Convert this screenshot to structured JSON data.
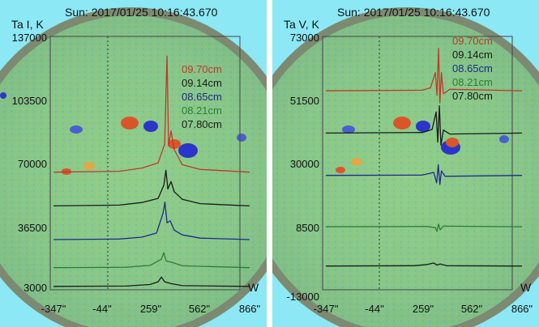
{
  "chart_data": [
    {
      "type": "line",
      "title": "Sun: 2017/01/25 10:16:43.670",
      "ylabel": "Ta I, K",
      "xlabel": "W",
      "ylim": [
        3000,
        137000
      ],
      "yticks": [
        "137000",
        "103500",
        "70000",
        "36500",
        "3000"
      ],
      "xticks": [
        "-347\"",
        "-44\"",
        "259\"",
        "562\"",
        "866\""
      ],
      "xlim": [
        -347,
        866
      ],
      "legend_position": "top-right",
      "series": [
        {
          "name": "09.70cm",
          "color": "#c0392b",
          "offset": 64500,
          "points": [
            [
              -347,
              0
            ],
            [
              60,
              500
            ],
            [
              200,
              2200
            ],
            [
              300,
              5000
            ],
            [
              340,
              15000
            ],
            [
              355,
              62000
            ],
            [
              365,
              14000
            ],
            [
              380,
              22000
            ],
            [
              400,
              12000
            ],
            [
              450,
              4000
            ],
            [
              560,
              1500
            ],
            [
              866,
              0
            ]
          ]
        },
        {
          "name": "09.14cm",
          "color": "#1a1a1a",
          "offset": 46500,
          "points": [
            [
              -347,
              0
            ],
            [
              60,
              400
            ],
            [
              200,
              1800
            ],
            [
              300,
              4000
            ],
            [
              335,
              11000
            ],
            [
              348,
              19000
            ],
            [
              360,
              9000
            ],
            [
              380,
              13000
            ],
            [
              400,
              7500
            ],
            [
              450,
              3500
            ],
            [
              560,
              1200
            ],
            [
              866,
              0
            ]
          ]
        },
        {
          "name": "08.65cm",
          "color": "#1f2a8a",
          "offset": 28500,
          "points": [
            [
              -347,
              0
            ],
            [
              60,
              300
            ],
            [
              200,
              1300
            ],
            [
              290,
              3500
            ],
            [
              330,
              14000
            ],
            [
              342,
              20000
            ],
            [
              355,
              9000
            ],
            [
              375,
              10000
            ],
            [
              400,
              5000
            ],
            [
              450,
              2500
            ],
            [
              560,
              800
            ],
            [
              866,
              0
            ]
          ]
        },
        {
          "name": "08.21cm",
          "color": "#2e7d32",
          "offset": 13500,
          "points": [
            [
              -347,
              0
            ],
            [
              100,
              200
            ],
            [
              250,
              1200
            ],
            [
              320,
              4500
            ],
            [
              335,
              8000
            ],
            [
              350,
              3500
            ],
            [
              380,
              3000
            ],
            [
              450,
              1000
            ],
            [
              866,
              0
            ]
          ]
        },
        {
          "name": "07.80cm",
          "color": "#1a1a1a",
          "offset": 3500,
          "points": [
            [
              -347,
              0
            ],
            [
              100,
              200
            ],
            [
              250,
              1000
            ],
            [
              300,
              2500
            ],
            [
              320,
              5000
            ],
            [
              340,
              2500
            ],
            [
              380,
              1500
            ],
            [
              450,
              400
            ],
            [
              866,
              0
            ]
          ]
        }
      ]
    },
    {
      "type": "line",
      "title": "Sun: 2017/01/25 10:16:43.670",
      "ylabel": "Ta V, K",
      "xlabel": "W",
      "ylim": [
        -13000,
        73000
      ],
      "yticks": [
        "73000",
        "51500",
        "30000",
        "8500",
        "-13000"
      ],
      "xticks": [
        "-347\"",
        "-44\"",
        "259\"",
        "562\"",
        "866\""
      ],
      "xlim": [
        -347,
        866
      ],
      "legend_position": "top-right",
      "series": [
        {
          "name": "09.70cm",
          "color": "#c0392b",
          "offset": 55000,
          "points": [
            [
              -347,
              0
            ],
            [
              250,
              200
            ],
            [
              300,
              1000
            ],
            [
              330,
              6000
            ],
            [
              340,
              -1500
            ],
            [
              350,
              14000
            ],
            [
              358,
              -4000
            ],
            [
              368,
              6000
            ],
            [
              380,
              -1000
            ],
            [
              420,
              500
            ],
            [
              866,
              0
            ]
          ]
        },
        {
          "name": "09.14cm",
          "color": "#1a1a1a",
          "offset": 41000,
          "points": [
            [
              -347,
              0
            ],
            [
              250,
              200
            ],
            [
              310,
              1200
            ],
            [
              335,
              7000
            ],
            [
              345,
              -3000
            ],
            [
              355,
              9000
            ],
            [
              365,
              -4000
            ],
            [
              380,
              1000
            ],
            [
              420,
              -300
            ],
            [
              866,
              0
            ]
          ]
        },
        {
          "name": "08.65cm",
          "color": "#1f2a8a",
          "offset": 27000,
          "points": [
            [
              -347,
              0
            ],
            [
              250,
              100
            ],
            [
              320,
              1000
            ],
            [
              338,
              -2500
            ],
            [
              348,
              3500
            ],
            [
              358,
              -3000
            ],
            [
              368,
              1500
            ],
            [
              390,
              -300
            ],
            [
              866,
              0
            ]
          ]
        },
        {
          "name": "08.21cm",
          "color": "#2e7d32",
          "offset": 10000,
          "points": [
            [
              -347,
              0
            ],
            [
              280,
              100
            ],
            [
              330,
              -300
            ],
            [
              340,
              -1500
            ],
            [
              350,
              900
            ],
            [
              360,
              -1000
            ],
            [
              380,
              200
            ],
            [
              866,
              0
            ]
          ]
        },
        {
          "name": "07.80cm",
          "color": "#1a1a1a",
          "offset": -3000,
          "points": [
            [
              -347,
              0
            ],
            [
              200,
              100
            ],
            [
              280,
              500
            ],
            [
              320,
              1000
            ],
            [
              340,
              300
            ],
            [
              360,
              700
            ],
            [
              400,
              100
            ],
            [
              866,
              0
            ]
          ]
        }
      ]
    }
  ]
}
